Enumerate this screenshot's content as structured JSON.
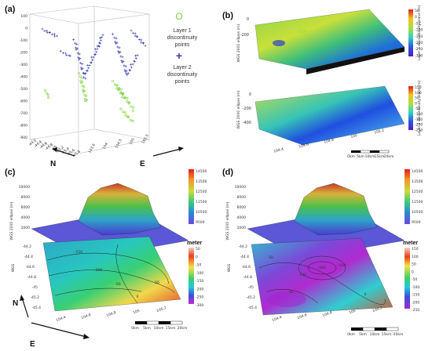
{
  "panels": {
    "a": {
      "label": "(a)",
      "legend": {
        "layer1": {
          "symbol": "O",
          "text_lines": [
            "Layer 1",
            "discontinuity",
            "points"
          ],
          "color": "#7bd13a"
        },
        "layer2": {
          "symbol": "+",
          "text_lines": [
            "Layer 2",
            "discontinuity",
            "points"
          ],
          "color": "#3a3ab0"
        }
      },
      "z_ticks": [
        "100",
        "0",
        "-100",
        "-200",
        "-300",
        "-400",
        "-500",
        "-600",
        "-700",
        "-800",
        "-900"
      ],
      "x_ticks": [
        "-44.2",
        "-44.4",
        "-44.6",
        "-44.8",
        "-45",
        "-45.2",
        "-45.4",
        "-45.6",
        "-45.8"
      ],
      "y_ticks": [
        "103.6",
        "104",
        "104.5",
        "105",
        "105.5"
      ],
      "compass_n": "N",
      "compass_e": "E"
    },
    "b": {
      "label": "(b)",
      "top_zlabel": "WGS 2000 ellipse (m)",
      "top_zticks": [
        "0",
        "-200"
      ],
      "top_colorbar_title": "Layer 1 discontinuity plane (m)",
      "top_colorbar_ticks": [
        "50",
        "0",
        "-50",
        "-100",
        "-150",
        "-200",
        "-250",
        "-300"
      ],
      "bottom_zlabel": "WGS 2000 ellipse (m)",
      "bottom_zticks": [
        "0",
        "-200",
        "-400"
      ],
      "bottom_colorbar_title": "Layer 2 discontinuity plane (m)",
      "bottom_colorbar_ticks": [
        "150",
        "100",
        "50",
        "0",
        "-50",
        "-100",
        "-150",
        "-200",
        "-250"
      ],
      "x_ticks": [
        "104.4",
        "104.6",
        "104.8",
        "105",
        "105.2"
      ],
      "scalebar": [
        "0km",
        "5km",
        "10km",
        "15km",
        "20km"
      ]
    },
    "c": {
      "label": "(c)",
      "zlabel": "WGS 2000 ellipse (m)",
      "zticks": [
        "10000",
        "8000",
        "6000",
        "4000",
        "2000"
      ],
      "top_colorbar_ticks": [
        "14500",
        "13500",
        "12500",
        "11500",
        "10500",
        "9500"
      ],
      "bottom_colorbar_title": "meter",
      "bottom_colorbar_ticks": [
        "50",
        "0",
        "-50",
        "-100",
        "-150",
        "-200",
        "-250",
        "-300"
      ],
      "side_label": "WGS",
      "y_ticks": [
        "-44.2",
        "-44.4",
        "-44.6",
        "-44.8",
        "-45",
        "-45.2",
        "-45.4"
      ],
      "x_ticks": [
        "104.4",
        "104.6",
        "104.8",
        "105",
        "105.2"
      ],
      "contours": [
        "-150",
        "-100",
        "-50",
        "0",
        "50"
      ],
      "scalebar": [
        "0km",
        "5km",
        "10km",
        "15km",
        "20km"
      ],
      "compass_n": "N",
      "compass_e": "E"
    },
    "d": {
      "label": "(d)",
      "zlabel": "WGS 2000 ellipse (m)",
      "zticks": [
        "10000",
        "8000",
        "6000",
        "4000",
        "2000"
      ],
      "top_colorbar_ticks": [
        "14500",
        "13500",
        "12500",
        "11500",
        "10500",
        "9500"
      ],
      "bottom_colorbar_title": "meter",
      "bottom_colorbar_ticks": [
        "150",
        "100",
        "50",
        "0",
        "-50",
        "-100",
        "-150",
        "-200",
        "-250"
      ],
      "side_label": "WGS",
      "y_ticks": [
        "-44.2",
        "-44.4",
        "-44.6",
        "-44.8",
        "-45",
        "-45.2",
        "-45.4"
      ],
      "x_ticks": [
        "104.4",
        "104.6",
        "104.8",
        "105",
        "105.2"
      ],
      "contours": [
        "-200",
        "-150",
        "-100",
        "-50",
        "0",
        "50"
      ],
      "scalebar": [
        "0km",
        "5km",
        "10km",
        "15km",
        "20km"
      ]
    }
  }
}
